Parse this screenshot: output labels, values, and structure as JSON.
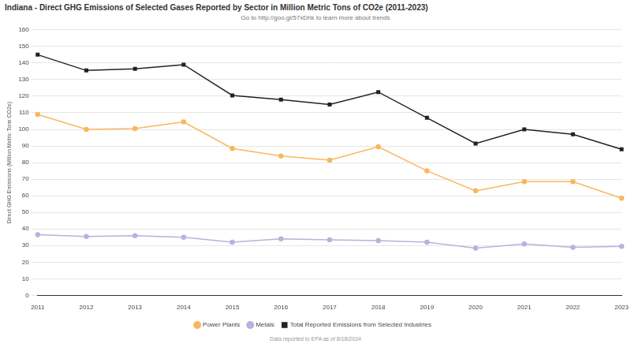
{
  "chart_data": {
    "type": "line",
    "title": "Indiana - Direct GHG Emissions of Selected Gases Reported by Sector in Million Metric Tons of CO2e (2011-2023)",
    "subtitle": "Go to http://goo.gl/57xDhk to learn more about trends",
    "footer": "Data reported to EPA as of 8/18/2024",
    "y_label": "Direct GHG Emissions (Million Metric Tons CO2e)",
    "categories": [
      "2011",
      "2012",
      "2013",
      "2014",
      "2015",
      "2016",
      "2017",
      "2018",
      "2019",
      "2020",
      "2021",
      "2022",
      "2023"
    ],
    "series": [
      {
        "name": "Power Plants",
        "color": "#f9b75e",
        "marker": "circle",
        "line_style": "solid",
        "values": [
          109,
          100,
          100.5,
          104.5,
          88.5,
          84,
          81.5,
          89.5,
          75,
          63,
          68.5,
          68.5,
          58.5
        ]
      },
      {
        "name": "Metals",
        "color": "#b4b4dc",
        "marker": "circle",
        "line_style": "solid",
        "values": [
          36.5,
          35.5,
          36,
          35,
          32,
          34,
          33.5,
          33,
          32,
          28.5,
          31,
          29,
          29.5
        ]
      },
      {
        "name": "Total Reported Emissions from Selected Industries",
        "color": "#222222",
        "marker": "square",
        "line_style": "solid",
        "values": [
          145,
          135.5,
          136.5,
          139,
          120.5,
          118,
          115,
          122.5,
          107,
          91.5,
          100,
          97,
          88
        ]
      }
    ],
    "ylim": [
      0,
      160
    ],
    "yticks": [
      0,
      10,
      20,
      30,
      40,
      50,
      60,
      70,
      80,
      90,
      100,
      110,
      120,
      130,
      140,
      150,
      160
    ],
    "grid": true,
    "legend": "bottom"
  }
}
